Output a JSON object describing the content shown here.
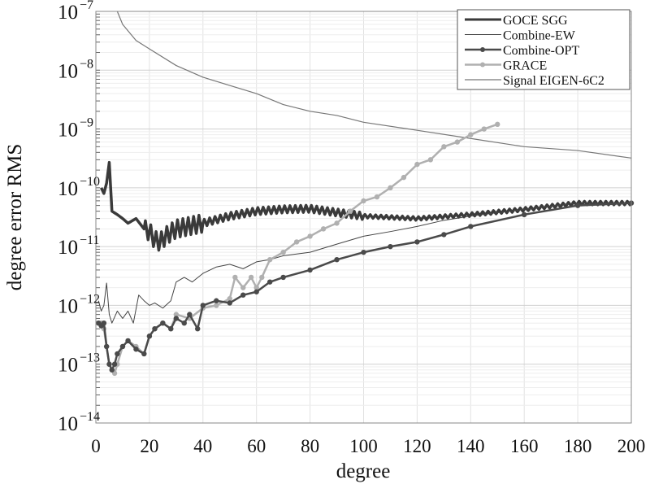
{
  "chart_data": {
    "type": "line",
    "title": "",
    "xlabel": "degree",
    "ylabel": "degree error RMS",
    "xlim": [
      0,
      200
    ],
    "ylim": [
      1e-14,
      1e-07
    ],
    "yscale": "log",
    "grid": true,
    "legend_position": "top-right",
    "xticks": [
      "0",
      "20",
      "40",
      "60",
      "80",
      "100",
      "120",
      "140",
      "160",
      "180",
      "200"
    ],
    "yticks": [
      {
        "base": "10",
        "exp": "-7"
      },
      {
        "base": "10",
        "exp": "-8"
      },
      {
        "base": "10",
        "exp": "-9"
      },
      {
        "base": "10",
        "exp": "-10"
      },
      {
        "base": "10",
        "exp": "-11"
      },
      {
        "base": "10",
        "exp": "-12"
      },
      {
        "base": "10",
        "exp": "-13"
      },
      {
        "base": "10",
        "exp": "-14"
      }
    ],
    "series": [
      {
        "name": "GOCE SGG",
        "color": "#3a3a3a",
        "width": 3.5,
        "markers": false,
        "oscillate": true,
        "x": [
          2,
          3,
          4,
          5,
          6,
          8,
          10,
          12,
          15,
          18,
          20,
          22,
          24,
          26,
          30,
          40,
          50,
          60,
          70,
          80,
          90,
          100,
          120,
          140,
          160,
          180,
          200
        ],
        "y": [
          1e-10,
          8e-11,
          1.2e-10,
          2.7e-10,
          4e-11,
          3.5e-11,
          3e-11,
          2.5e-11,
          3e-11,
          2e-11,
          1.8e-11,
          1.3e-11,
          1.2e-11,
          1.5e-11,
          2e-11,
          2.5e-11,
          3.3e-11,
          4e-11,
          4.3e-11,
          4.4e-11,
          3.8e-11,
          3.3e-11,
          3e-11,
          3.5e-11,
          4.3e-11,
          5.5e-11,
          5.5e-11
        ]
      },
      {
        "name": "Combine-EW",
        "color": "#444444",
        "width": 1,
        "markers": false,
        "x": [
          1,
          2,
          3,
          4,
          5,
          6,
          8,
          10,
          12,
          14,
          16,
          18,
          20,
          22,
          25,
          28,
          30,
          33,
          36,
          40,
          45,
          50,
          55,
          60,
          65,
          70,
          80,
          90,
          100,
          110,
          120,
          130,
          140,
          160,
          180,
          200
        ],
        "y": [
          1.2e-12,
          8e-13,
          1e-12,
          2.4e-12,
          7e-13,
          5e-13,
          8e-13,
          6e-13,
          8e-13,
          5e-13,
          1.5e-12,
          1.2e-12,
          1e-12,
          1.1e-12,
          9e-13,
          1.2e-12,
          2.5e-12,
          3e-12,
          2.5e-12,
          3.5e-12,
          4.5e-12,
          5e-12,
          4.2e-12,
          5.5e-12,
          6e-12,
          7e-12,
          8e-12,
          1.1e-11,
          1.5e-11,
          1.8e-11,
          2.2e-11,
          2.8e-11,
          3.3e-11,
          4.3e-11,
          5.5e-11,
          5.5e-11
        ]
      },
      {
        "name": "Combine-OPT",
        "color": "#4a4a4a",
        "width": 2.5,
        "markers": true,
        "x": [
          1,
          2,
          3,
          4,
          5,
          6,
          7,
          8,
          10,
          12,
          15,
          18,
          20,
          22,
          25,
          28,
          30,
          33,
          35,
          38,
          40,
          45,
          50,
          55,
          60,
          65,
          70,
          80,
          90,
          100,
          110,
          120,
          130,
          140,
          160,
          180,
          200
        ],
        "y": [
          5e-13,
          4.5e-13,
          5e-13,
          2e-13,
          1e-13,
          8e-14,
          1e-13,
          1.5e-13,
          2e-13,
          2.5e-13,
          1.8e-13,
          1.5e-13,
          3e-13,
          4e-13,
          5e-13,
          4e-13,
          6e-13,
          5e-13,
          7e-13,
          4e-13,
          1e-12,
          1.2e-12,
          1.1e-12,
          1.5e-12,
          1.7e-12,
          2.5e-12,
          3e-12,
          4e-12,
          6e-12,
          8e-12,
          1e-11,
          1.2e-11,
          1.6e-11,
          2.2e-11,
          3.5e-11,
          5e-11,
          5.5e-11
        ]
      },
      {
        "name": "GRACE",
        "color": "#b0b0b0",
        "width": 2.5,
        "markers": true,
        "x": [
          1,
          2,
          3,
          4,
          5,
          6,
          7,
          8,
          10,
          12,
          15,
          18,
          20,
          22,
          25,
          28,
          30,
          35,
          40,
          45,
          50,
          52,
          55,
          58,
          60,
          62,
          65,
          70,
          75,
          80,
          85,
          90,
          95,
          100,
          105,
          110,
          115,
          120,
          125,
          130,
          135,
          140,
          145,
          150
        ],
        "y": [
          5e-13,
          5e-13,
          4e-13,
          2e-13,
          1e-13,
          8e-14,
          7e-14,
          1e-13,
          2e-13,
          2.5e-13,
          2e-13,
          1.5e-13,
          3e-13,
          4e-13,
          5e-13,
          4e-13,
          7e-13,
          6e-13,
          9e-13,
          1e-12,
          1.3e-12,
          3e-12,
          2e-12,
          3e-12,
          2e-12,
          3e-12,
          6e-12,
          8e-12,
          1.2e-11,
          1.5e-11,
          2e-11,
          2.5e-11,
          4e-11,
          6e-11,
          7e-11,
          1e-10,
          1.5e-10,
          2.5e-10,
          3e-10,
          5e-10,
          6e-10,
          8e-10,
          1e-09,
          1.2e-09
        ]
      },
      {
        "name": "Signal EIGEN-6C2",
        "color": "#777777",
        "width": 1.2,
        "markers": false,
        "x": [
          8,
          10,
          15,
          20,
          30,
          40,
          50,
          60,
          70,
          80,
          90,
          100,
          120,
          140,
          160,
          180,
          200
        ],
        "y": [
          1e-07,
          6e-08,
          3.2e-08,
          2.3e-08,
          1.2e-08,
          7.6e-09,
          5.5e-09,
          4e-09,
          2.6e-09,
          2e-09,
          1.7e-09,
          1.3e-09,
          9.5e-10,
          6.9e-10,
          5e-10,
          4.3e-10,
          3.2e-10
        ]
      }
    ]
  }
}
